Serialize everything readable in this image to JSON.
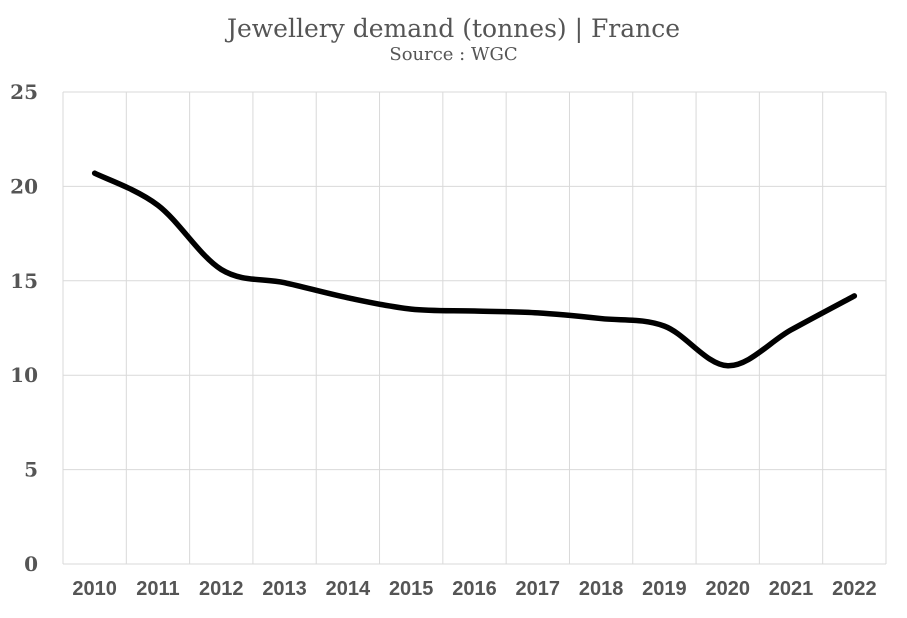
{
  "chart_data": {
    "type": "line",
    "title": "Jewellery demand (tonnes) | France",
    "subtitle": "Source : WGC",
    "xlabel": "",
    "ylabel": "",
    "categories": [
      "2010",
      "2011",
      "2012",
      "2013",
      "2014",
      "2015",
      "2016",
      "2017",
      "2018",
      "2019",
      "2020",
      "2021",
      "2022"
    ],
    "ylim": [
      0,
      25
    ],
    "yticks": [
      0,
      5,
      10,
      15,
      20,
      25
    ],
    "grid": true,
    "legend": "none",
    "line_color": "#000000",
    "grid_color": "#d9d9d9",
    "series": [
      {
        "values": [
          20.7,
          19.0,
          15.6,
          14.9,
          14.1,
          13.5,
          13.4,
          13.3,
          13.0,
          12.6,
          10.5,
          12.4,
          14.2
        ]
      }
    ]
  }
}
